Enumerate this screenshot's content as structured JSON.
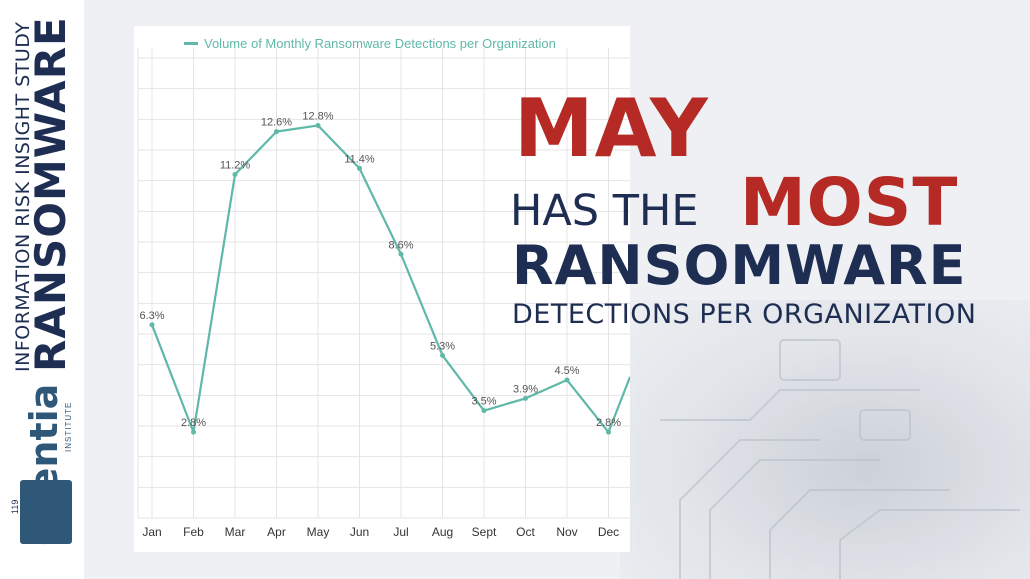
{
  "sidebar": {
    "series_name": "INFORMATION RISK INSIGHT STUDY",
    "series_title": "RANSOMWARE",
    "logo_text": "Cyentia",
    "logo_sub": "INSTITUTE",
    "logo_number": "119"
  },
  "headline": {
    "line1": "MAY",
    "line2a": "HAS THE",
    "line2b": "MOST",
    "line3": "RANSOMWARE",
    "line4": "DETECTIONS PER ORGANIZATION"
  },
  "colors": {
    "line": "#5fb8a8",
    "accent_red": "#b52a25",
    "navy": "#1e2d52",
    "grid": "#e4e4e4"
  },
  "chart_data": {
    "type": "line",
    "title": "",
    "xlabel": "",
    "ylabel": "",
    "legend": "top-left",
    "grid": true,
    "categories": [
      "Jan",
      "Feb",
      "Mar",
      "Apr",
      "May",
      "Jun",
      "Jul",
      "Aug",
      "Sept",
      "Oct",
      "Nov",
      "Dec"
    ],
    "series": [
      {
        "name": "Volume of Monthly Ransomware Detections per Organization",
        "values": [
          6.3,
          2.8,
          11.2,
          12.6,
          12.8,
          11.4,
          8.6,
          5.3,
          3.5,
          3.9,
          4.5,
          2.8
        ],
        "labels": [
          "6.3%",
          "2.8%",
          "11.2%",
          "12.6%",
          "12.8%",
          "11.4%",
          "8.6%",
          "5.3%",
          "3.5%",
          "3.9%",
          "4.5%",
          "2.8%"
        ]
      }
    ],
    "ylim": [
      0,
      15
    ]
  }
}
